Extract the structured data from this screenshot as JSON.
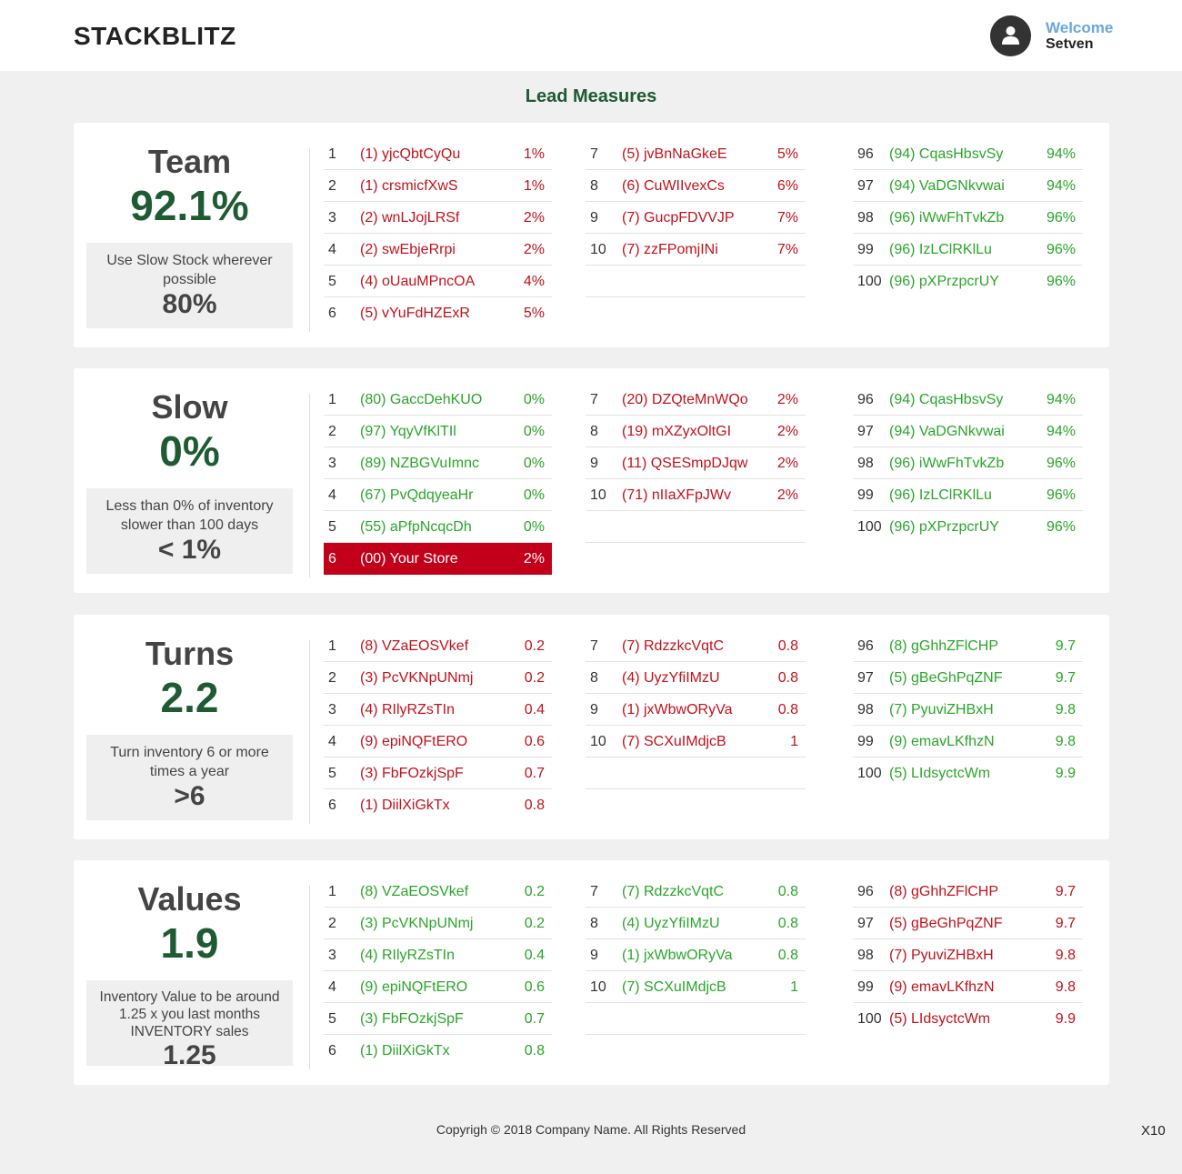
{
  "header": {
    "brand": "STACKBLITZ",
    "welcome": "Welcome",
    "user": "Setven"
  },
  "page_title": "Lead Measures",
  "colors": {
    "red": "#c0121c",
    "green": "#2aa52a",
    "dark_green": "#1e5a32",
    "highlight": "#c3001a"
  },
  "cards": [
    {
      "name": "Team",
      "score": "92.1%",
      "target_text": "Use Slow Stock wherever possible",
      "target_value": "80%",
      "col1": [
        {
          "rank": "1",
          "name": "(1) yjcQbtCyQu",
          "value": "1%",
          "status": "red"
        },
        {
          "rank": "2",
          "name": "(1) crsmicfXwS",
          "value": "1%",
          "status": "red"
        },
        {
          "rank": "3",
          "name": "(2) wnLJojLRSf",
          "value": "2%",
          "status": "red"
        },
        {
          "rank": "4",
          "name": "(2) swEbjeRrpi",
          "value": "2%",
          "status": "red"
        },
        {
          "rank": "5",
          "name": "(4) oUauMPncOA",
          "value": "4%",
          "status": "red"
        },
        {
          "rank": "6",
          "name": "(5) vYuFdHZExR",
          "value": "5%",
          "status": "red"
        }
      ],
      "col2": [
        {
          "rank": "7",
          "name": "(5) jvBnNaGkeE",
          "value": "5%",
          "status": "red"
        },
        {
          "rank": "8",
          "name": "(6) CuWIIvexCs",
          "value": "6%",
          "status": "red"
        },
        {
          "rank": "9",
          "name": "(7) GucpFDVVJP",
          "value": "7%",
          "status": "red"
        },
        {
          "rank": "10",
          "name": "(7) zzFPomjINi",
          "value": "7%",
          "status": "red"
        }
      ],
      "col3": [
        {
          "rank": "96",
          "name": "(94) CqasHbsvSy",
          "value": "94%",
          "status": "green"
        },
        {
          "rank": "97",
          "name": "(94) VaDGNkvwai",
          "value": "94%",
          "status": "green"
        },
        {
          "rank": "98",
          "name": "(96) iWwFhTvkZb",
          "value": "96%",
          "status": "green"
        },
        {
          "rank": "99",
          "name": "(96) IzLClRKlLu",
          "value": "96%",
          "status": "green"
        },
        {
          "rank": "100",
          "name": "(96) pXPrzpcrUY",
          "value": "96%",
          "status": "green"
        }
      ]
    },
    {
      "name": "Slow",
      "score": "0%",
      "target_text": "Less than 0% of inventory slower than 100 days",
      "target_value": "< 1%",
      "col1": [
        {
          "rank": "1",
          "name": "(80) GaccDehKUO",
          "value": "0%",
          "status": "green"
        },
        {
          "rank": "2",
          "name": "(97) YqyVfKlTIl",
          "value": "0%",
          "status": "green"
        },
        {
          "rank": "3",
          "name": "(89) NZBGVuImnc",
          "value": "0%",
          "status": "green"
        },
        {
          "rank": "4",
          "name": "(67) PvQdqyeaHr",
          "value": "0%",
          "status": "green"
        },
        {
          "rank": "5",
          "name": "(55) aPfpNcqcDh",
          "value": "0%",
          "status": "green"
        },
        {
          "rank": "6",
          "name": "(00) Your Store",
          "value": "2%",
          "status": "highlight"
        }
      ],
      "col2": [
        {
          "rank": "7",
          "name": "(20) DZQteMnWQo",
          "value": "2%",
          "status": "red"
        },
        {
          "rank": "8",
          "name": "(19) mXZyxOltGI",
          "value": "2%",
          "status": "red"
        },
        {
          "rank": "9",
          "name": "(11) QSESmpDJqw",
          "value": "2%",
          "status": "red"
        },
        {
          "rank": "10",
          "name": "(71) nIIaXFpJWv",
          "value": "2%",
          "status": "red"
        }
      ],
      "col3": [
        {
          "rank": "96",
          "name": "(94) CqasHbsvSy",
          "value": "94%",
          "status": "green"
        },
        {
          "rank": "97",
          "name": "(94) VaDGNkvwai",
          "value": "94%",
          "status": "green"
        },
        {
          "rank": "98",
          "name": "(96) iWwFhTvkZb",
          "value": "96%",
          "status": "green"
        },
        {
          "rank": "99",
          "name": "(96) IzLClRKlLu",
          "value": "96%",
          "status": "green"
        },
        {
          "rank": "100",
          "name": "(96) pXPrzpcrUY",
          "value": "96%",
          "status": "green"
        }
      ]
    },
    {
      "name": "Turns",
      "score": "2.2",
      "target_text": "Turn inventory 6 or more times a year",
      "target_value": ">6",
      "col1": [
        {
          "rank": "1",
          "name": "(8) VZaEOSVkef",
          "value": "0.2",
          "status": "red"
        },
        {
          "rank": "2",
          "name": "(3) PcVKNpUNmj",
          "value": "0.2",
          "status": "red"
        },
        {
          "rank": "3",
          "name": "(4) RIlyRZsTIn",
          "value": "0.4",
          "status": "red"
        },
        {
          "rank": "4",
          "name": "(9) epiNQFtERO",
          "value": "0.6",
          "status": "red"
        },
        {
          "rank": "5",
          "name": "(3) FbFOzkjSpF",
          "value": "0.7",
          "status": "red"
        },
        {
          "rank": "6",
          "name": "(1) DiilXiGkTx",
          "value": "0.8",
          "status": "red"
        }
      ],
      "col2": [
        {
          "rank": "7",
          "name": "(7) RdzzkcVqtC",
          "value": "0.8",
          "status": "red"
        },
        {
          "rank": "8",
          "name": "(4) UyzYfiIMzU",
          "value": "0.8",
          "status": "red"
        },
        {
          "rank": "9",
          "name": "(1) jxWbwORyVa",
          "value": "0.8",
          "status": "red"
        },
        {
          "rank": "10",
          "name": "(7) SCXuIMdjcB",
          "value": "1",
          "status": "red"
        }
      ],
      "col3": [
        {
          "rank": "96",
          "name": "(8) gGhhZFlCHP",
          "value": "9.7",
          "status": "green"
        },
        {
          "rank": "97",
          "name": "(5) gBeGhPqZNF",
          "value": "9.7",
          "status": "green"
        },
        {
          "rank": "98",
          "name": "(7) PyuviZHBxH",
          "value": "9.8",
          "status": "green"
        },
        {
          "rank": "99",
          "name": "(9) emavLKfhzN",
          "value": "9.8",
          "status": "green"
        },
        {
          "rank": "100",
          "name": "(5) LIdsyctcWm",
          "value": "9.9",
          "status": "green"
        }
      ]
    },
    {
      "name": "Values",
      "score": "1.9",
      "target_text": "Inventory Value to be around 1.25 x you last months INVENTORY sales",
      "target_value": "1.25",
      "col1": [
        {
          "rank": "1",
          "name": "(8) VZaEOSVkef",
          "value": "0.2",
          "status": "green"
        },
        {
          "rank": "2",
          "name": "(3) PcVKNpUNmj",
          "value": "0.2",
          "status": "green"
        },
        {
          "rank": "3",
          "name": "(4) RIlyRZsTIn",
          "value": "0.4",
          "status": "green"
        },
        {
          "rank": "4",
          "name": "(9) epiNQFtERO",
          "value": "0.6",
          "status": "green"
        },
        {
          "rank": "5",
          "name": "(3) FbFOzkjSpF",
          "value": "0.7",
          "status": "green"
        },
        {
          "rank": "6",
          "name": "(1) DiilXiGkTx",
          "value": "0.8",
          "status": "green"
        }
      ],
      "col2": [
        {
          "rank": "7",
          "name": "(7) RdzzkcVqtC",
          "value": "0.8",
          "status": "green"
        },
        {
          "rank": "8",
          "name": "(4) UyzYfiIMzU",
          "value": "0.8",
          "status": "green"
        },
        {
          "rank": "9",
          "name": "(1) jxWbwORyVa",
          "value": "0.8",
          "status": "green"
        },
        {
          "rank": "10",
          "name": "(7) SCXuIMdjcB",
          "value": "1",
          "status": "green"
        }
      ],
      "col3": [
        {
          "rank": "96",
          "name": "(8) gGhhZFlCHP",
          "value": "9.7",
          "status": "red"
        },
        {
          "rank": "97",
          "name": "(5) gBeGhPqZNF",
          "value": "9.7",
          "status": "red"
        },
        {
          "rank": "98",
          "name": "(7) PyuviZHBxH",
          "value": "9.8",
          "status": "red"
        },
        {
          "rank": "99",
          "name": "(9) emavLKfhzN",
          "value": "9.8",
          "status": "red"
        },
        {
          "rank": "100",
          "name": "(5) LIdsyctcWm",
          "value": "9.9",
          "status": "red"
        }
      ]
    }
  ],
  "footer": {
    "copyright": "Copyrigh © 2018 Company Name. All Rights Reserved",
    "corner": "X10"
  }
}
